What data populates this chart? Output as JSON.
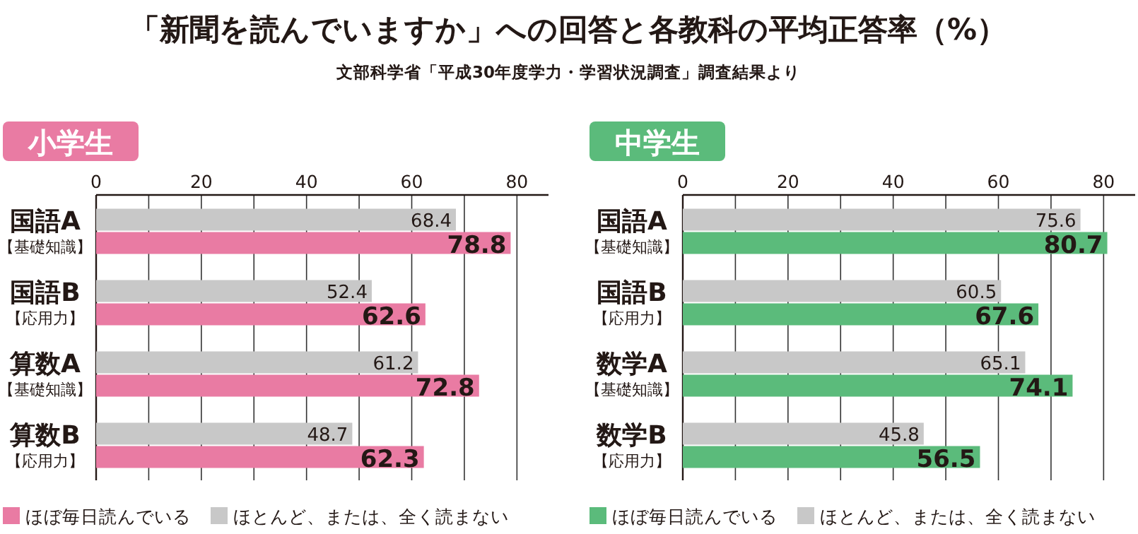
{
  "chart_data": [
    {
      "type": "bar",
      "orientation": "horizontal",
      "title": "小学生",
      "annotations": [
        "「新聞を読んでいますか」への回答と各教科の平均正答率（%）",
        "文部科学省「平成30年度学力・学習状況調査」調査結果より"
      ],
      "categories": [
        "国語A\n【基礎知識】",
        "国語B\n【応用力】",
        "算数A\n【基礎知識】",
        "算数B\n【応用力】"
      ],
      "series": [
        {
          "name": "ほとんど、または、全く読まない",
          "color": "#c8c8c8",
          "values": [
            68.4,
            52.4,
            61.2,
            48.7
          ]
        },
        {
          "name": "ほぼ毎日読んでいる",
          "color": "#e97ba3",
          "values": [
            78.8,
            62.6,
            72.8,
            62.3
          ]
        }
      ],
      "xlim": [
        0,
        86
      ],
      "xticks": [
        0,
        {
          "value": 10,
          "label": null
        },
        20,
        {
          "value": 30,
          "label": null
        },
        40,
        {
          "value": 50,
          "label": null
        },
        60,
        {
          "value": 70,
          "label": null
        },
        80
      ],
      "grid": "x",
      "data_labels": true,
      "legend": "bottom"
    },
    {
      "type": "bar",
      "orientation": "horizontal",
      "title": "中学生",
      "categories": [
        "国語A\n【基礎知識】",
        "国語B\n【応用力】",
        "数学A\n【基礎知識】",
        "数学B\n【応用力】"
      ],
      "series": [
        {
          "name": "ほとんど、または、全く読まない",
          "color": "#c8c8c8",
          "values": [
            75.6,
            60.5,
            65.1,
            45.8
          ]
        },
        {
          "name": "ほぼ毎日読んでいる",
          "color": "#5bbb7b",
          "values": [
            80.7,
            67.6,
            74.1,
            56.5
          ]
        }
      ],
      "xlim": [
        0,
        86
      ],
      "xticks": [
        0,
        {
          "value": 10,
          "label": null
        },
        20,
        {
          "value": 30,
          "label": null
        },
        40,
        {
          "value": 50,
          "label": null
        },
        60,
        {
          "value": 70,
          "label": null
        },
        80
      ],
      "grid": "x",
      "data_labels": true,
      "legend": "bottom"
    }
  ]
}
